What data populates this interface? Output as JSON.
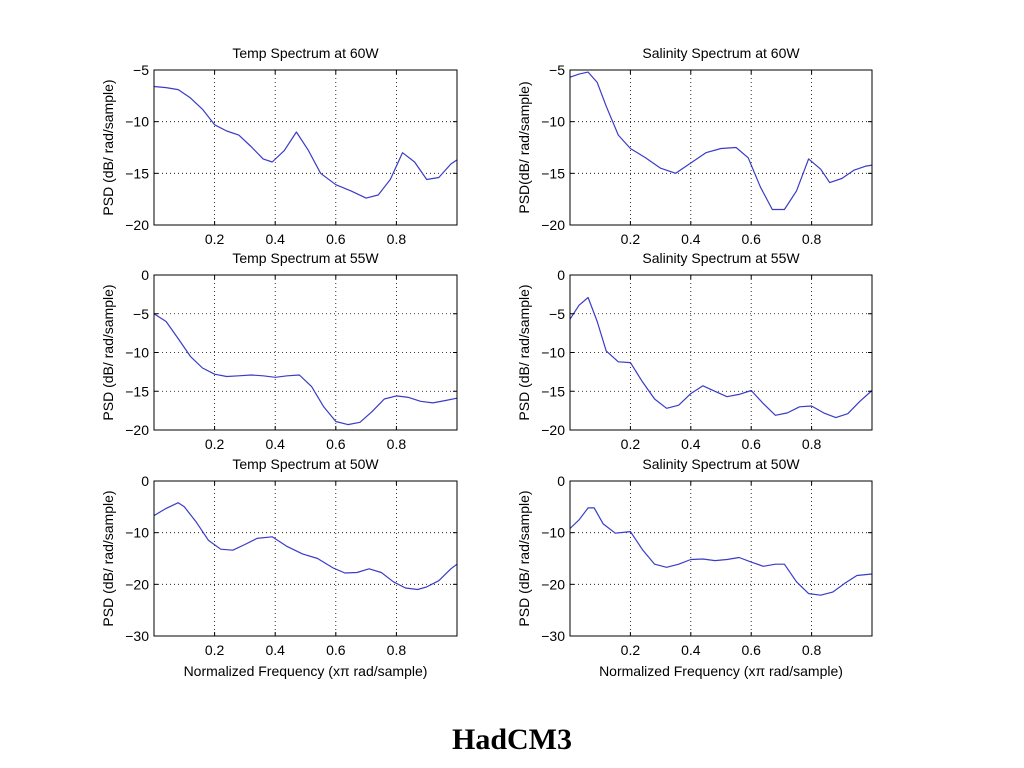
{
  "footer_title": "HadCM3",
  "colors": {
    "line": "#3b3bc8",
    "axes": "#000000",
    "grid": "#000000",
    "background": "#ffffff"
  },
  "chart_data": [
    {
      "type": "line",
      "title": "Temp Spectrum at 60W",
      "xlabel": "",
      "ylabel": "PSD (dB/ rad/sample)",
      "xlim": [
        0,
        1
      ],
      "ylim": [
        -20,
        -5
      ],
      "xticks": [
        0.2,
        0.4,
        0.6,
        0.8
      ],
      "xtick_labels": [
        "0.2",
        "0.4",
        "0.6",
        "0.8"
      ],
      "yticks": [
        -20,
        -15,
        -10,
        -5
      ],
      "ytick_labels": [
        "−20",
        "−15",
        "−10",
        "−5"
      ],
      "grid": true,
      "x": [
        0,
        0.04,
        0.08,
        0.12,
        0.16,
        0.2,
        0.24,
        0.28,
        0.32,
        0.36,
        0.39,
        0.43,
        0.47,
        0.51,
        0.55,
        0.6,
        0.65,
        0.7,
        0.74,
        0.78,
        0.82,
        0.86,
        0.9,
        0.94,
        0.98,
        1.0
      ],
      "y": [
        -6.6,
        -6.7,
        -6.9,
        -7.7,
        -8.8,
        -10.3,
        -10.9,
        -11.3,
        -12.4,
        -13.6,
        -13.9,
        -12.8,
        -11.0,
        -12.8,
        -15.0,
        -16.1,
        -16.7,
        -17.4,
        -17.1,
        -15.6,
        -13.0,
        -13.9,
        -15.6,
        -15.4,
        -14.1,
        -13.7
      ]
    },
    {
      "type": "line",
      "title": "Salinity Spectrum at 60W",
      "xlabel": "",
      "ylabel": "PSD(dB/ rad/sample)",
      "xlim": [
        0,
        1
      ],
      "ylim": [
        -20,
        -5
      ],
      "xticks": [
        0.2,
        0.4,
        0.6,
        0.8
      ],
      "xtick_labels": [
        "0.2",
        "0.4",
        "0.6",
        "0.8"
      ],
      "yticks": [
        -20,
        -15,
        -10,
        -5
      ],
      "ytick_labels": [
        "−20",
        "−15",
        "−10",
        "−5"
      ],
      "grid": true,
      "x": [
        0,
        0.03,
        0.06,
        0.09,
        0.12,
        0.16,
        0.2,
        0.25,
        0.3,
        0.35,
        0.4,
        0.45,
        0.5,
        0.55,
        0.59,
        0.63,
        0.67,
        0.71,
        0.75,
        0.79,
        0.83,
        0.86,
        0.9,
        0.94,
        0.98,
        1.0
      ],
      "y": [
        -5.7,
        -5.4,
        -5.2,
        -6.2,
        -8.5,
        -11.3,
        -12.6,
        -13.5,
        -14.5,
        -15.0,
        -14.0,
        -13.0,
        -12.6,
        -12.5,
        -13.5,
        -16.3,
        -18.5,
        -18.5,
        -16.7,
        -13.6,
        -14.6,
        -15.9,
        -15.5,
        -14.7,
        -14.3,
        -14.2
      ]
    },
    {
      "type": "line",
      "title": "Temp Spectrum at 55W",
      "xlabel": "",
      "ylabel": "PSD (dB/ rad/sample)",
      "xlim": [
        0,
        1
      ],
      "ylim": [
        -20,
        0
      ],
      "xticks": [
        0.2,
        0.4,
        0.6,
        0.8
      ],
      "xtick_labels": [
        "0.2",
        "0.4",
        "0.6",
        "0.8"
      ],
      "yticks": [
        -20,
        -15,
        -10,
        -5,
        0
      ],
      "ytick_labels": [
        "−20",
        "−15",
        "−10",
        "−5",
        "0"
      ],
      "grid": true,
      "x": [
        0,
        0.04,
        0.08,
        0.12,
        0.16,
        0.2,
        0.24,
        0.28,
        0.32,
        0.36,
        0.4,
        0.44,
        0.48,
        0.52,
        0.56,
        0.6,
        0.64,
        0.68,
        0.72,
        0.76,
        0.8,
        0.84,
        0.88,
        0.92,
        0.96,
        1.0
      ],
      "y": [
        -5.0,
        -6.0,
        -8.2,
        -10.5,
        -12.0,
        -12.8,
        -13.1,
        -13.0,
        -12.9,
        -13.0,
        -13.2,
        -13.0,
        -12.9,
        -14.4,
        -17.0,
        -18.9,
        -19.3,
        -19.0,
        -17.6,
        -16.0,
        -15.6,
        -15.8,
        -16.3,
        -16.5,
        -16.2,
        -15.9
      ]
    },
    {
      "type": "line",
      "title": "Salinity Spectrum at 55W",
      "xlabel": "",
      "ylabel": "PSD (dB/ rad/sample)",
      "xlim": [
        0,
        1
      ],
      "ylim": [
        -20,
        0
      ],
      "xticks": [
        0.2,
        0.4,
        0.6,
        0.8
      ],
      "xtick_labels": [
        "0.2",
        "0.4",
        "0.6",
        "0.8"
      ],
      "yticks": [
        -20,
        -15,
        -10,
        -5,
        0
      ],
      "ytick_labels": [
        "−20",
        "−15",
        "−10",
        "−5",
        "0"
      ],
      "grid": true,
      "x": [
        0,
        0.03,
        0.06,
        0.09,
        0.12,
        0.16,
        0.2,
        0.24,
        0.28,
        0.32,
        0.36,
        0.4,
        0.44,
        0.48,
        0.52,
        0.56,
        0.6,
        0.64,
        0.68,
        0.72,
        0.76,
        0.8,
        0.84,
        0.88,
        0.92,
        0.96,
        1.0
      ],
      "y": [
        -5.7,
        -3.9,
        -2.9,
        -6.0,
        -9.8,
        -11.2,
        -11.3,
        -13.8,
        -16.0,
        -17.2,
        -16.8,
        -15.3,
        -14.3,
        -15.0,
        -15.7,
        -15.4,
        -14.9,
        -16.6,
        -18.1,
        -17.8,
        -17.0,
        -16.9,
        -17.8,
        -18.4,
        -17.9,
        -16.3,
        -14.9
      ]
    },
    {
      "type": "line",
      "title": "Temp Spectrum at 50W",
      "xlabel": "Normalized Frequency  (xπ rad/sample)",
      "ylabel": "PSD (dB/ rad/sample)",
      "xlim": [
        0,
        1
      ],
      "ylim": [
        -30,
        0
      ],
      "xticks": [
        0.2,
        0.4,
        0.6,
        0.8
      ],
      "xtick_labels": [
        "0.2",
        "0.4",
        "0.6",
        "0.8"
      ],
      "yticks": [
        -30,
        -20,
        -10,
        0
      ],
      "ytick_labels": [
        "−30",
        "−20",
        "−10",
        "0"
      ],
      "grid": true,
      "x": [
        0,
        0.04,
        0.08,
        0.1,
        0.14,
        0.18,
        0.22,
        0.26,
        0.3,
        0.34,
        0.39,
        0.44,
        0.49,
        0.54,
        0.59,
        0.63,
        0.67,
        0.71,
        0.75,
        0.79,
        0.83,
        0.87,
        0.9,
        0.94,
        0.98,
        1.0
      ],
      "y": [
        -6.7,
        -5.3,
        -4.2,
        -5.0,
        -8.0,
        -11.5,
        -13.2,
        -13.4,
        -12.3,
        -11.1,
        -10.8,
        -12.7,
        -14.1,
        -15.0,
        -16.8,
        -17.8,
        -17.7,
        -17.0,
        -17.7,
        -19.5,
        -20.7,
        -21.0,
        -20.5,
        -19.3,
        -17.0,
        -16.1
      ]
    },
    {
      "type": "line",
      "title": "Salinity Spectrum at 50W",
      "xlabel": "Normalized Frequency  (xπ rad/sample)",
      "ylabel": "PSD (dB/ rad/sample)",
      "xlim": [
        0,
        1
      ],
      "ylim": [
        -30,
        0
      ],
      "xticks": [
        0.2,
        0.4,
        0.6,
        0.8
      ],
      "xtick_labels": [
        "0.2",
        "0.4",
        "0.6",
        "0.8"
      ],
      "yticks": [
        -30,
        -20,
        -10,
        0
      ],
      "ytick_labels": [
        "−30",
        "−20",
        "−10",
        "0"
      ],
      "grid": true,
      "x": [
        0,
        0.03,
        0.06,
        0.08,
        0.11,
        0.15,
        0.2,
        0.24,
        0.28,
        0.32,
        0.36,
        0.4,
        0.44,
        0.48,
        0.52,
        0.56,
        0.6,
        0.64,
        0.68,
        0.71,
        0.75,
        0.79,
        0.83,
        0.87,
        0.91,
        0.95,
        1.0
      ],
      "y": [
        -9.2,
        -7.5,
        -5.2,
        -5.2,
        -8.3,
        -10.1,
        -9.8,
        -13.3,
        -16.1,
        -16.7,
        -16.1,
        -15.2,
        -15.1,
        -15.4,
        -15.2,
        -14.8,
        -15.7,
        -16.5,
        -16.1,
        -16.1,
        -19.5,
        -21.8,
        -22.1,
        -21.5,
        -19.8,
        -18.3,
        -18.0
      ]
    }
  ]
}
